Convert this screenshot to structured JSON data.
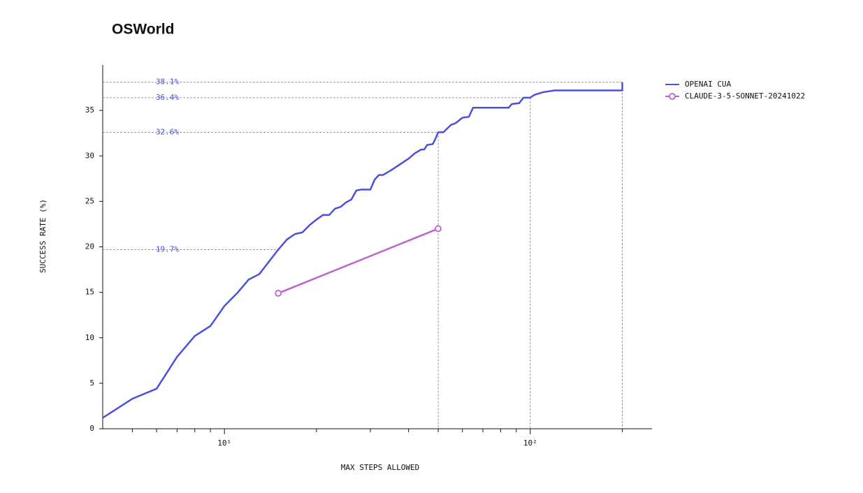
{
  "chart_data": {
    "type": "line",
    "title": "OSWorld",
    "x_label": "MAX STEPS ALLOWED",
    "y_label": "SUCCESS RATE (%)",
    "x_scale": "log",
    "xlim": [
      4,
      250
    ],
    "ylim": [
      0,
      40
    ],
    "xticks": [
      {
        "value": 10,
        "label": "10¹"
      },
      {
        "value": 100,
        "label": "10²"
      }
    ],
    "xminor_ticks": [
      5,
      6,
      7,
      8,
      9,
      20,
      30,
      40,
      50,
      60,
      70,
      80,
      90,
      200
    ],
    "yticks": [
      0,
      5,
      10,
      15,
      20,
      25,
      30,
      35
    ],
    "legend": "top-right",
    "series": [
      {
        "name": "OPENAI CUA",
        "color": "#4b4fe0",
        "markers": false,
        "x": [
          4,
          5,
          6,
          7,
          8,
          9,
          10,
          11,
          12,
          13,
          15,
          16,
          17,
          18,
          19,
          20,
          21,
          22,
          23,
          24,
          25,
          26,
          27,
          28,
          30,
          31,
          32,
          33,
          35,
          38,
          40,
          42,
          44,
          45,
          46,
          48,
          49,
          50,
          52,
          55,
          57,
          60,
          63,
          65,
          85,
          87,
          92,
          95,
          100,
          103,
          110,
          120,
          200,
          200
        ],
        "values": [
          1.2,
          3.3,
          4.4,
          7.9,
          10.2,
          11.3,
          13.5,
          14.9,
          16.4,
          17.0,
          19.7,
          20.8,
          21.4,
          21.6,
          22.4,
          23.0,
          23.5,
          23.5,
          24.2,
          24.4,
          24.9,
          25.2,
          26.2,
          26.3,
          26.3,
          27.4,
          27.9,
          27.9,
          28.4,
          29.2,
          29.7,
          30.3,
          30.7,
          30.7,
          31.2,
          31.3,
          31.9,
          32.6,
          32.6,
          33.4,
          33.6,
          34.2,
          34.3,
          35.3,
          35.3,
          35.7,
          35.8,
          36.4,
          36.4,
          36.7,
          37.0,
          37.2,
          37.2,
          38.1
        ]
      },
      {
        "name": "CLAUDE-3-5-SONNET-20241022",
        "color": "#c25fd1",
        "markers": true,
        "x": [
          15,
          50
        ],
        "values": [
          14.9,
          22.0
        ]
      }
    ],
    "annotations": [
      {
        "x": 200,
        "y": 38.1,
        "label": "38.1%",
        "vline": true
      },
      {
        "x": 100,
        "y": 36.4,
        "label": "36.4%",
        "vline": true
      },
      {
        "x": 50,
        "y": 32.6,
        "label": "32.6%",
        "vline": true
      },
      {
        "x": 15,
        "y": 19.7,
        "label": "19.7%",
        "vline": false
      }
    ]
  }
}
